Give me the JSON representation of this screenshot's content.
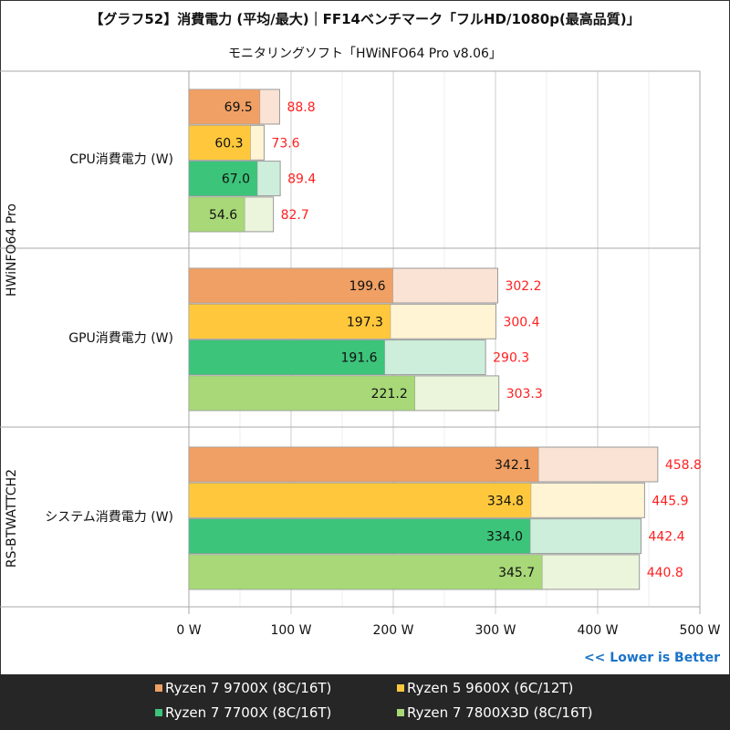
{
  "chart_data": {
    "type": "bar",
    "title": "【グラフ52】消費電力 (平均/最大)｜FF14ベンチマーク「フルHD/1080p(最高品質)」",
    "subtitle": "モニタリングソフト「HWiNFO64 Pro v8.06」",
    "categories": [
      "CPU消費電力 (W)",
      "GPU消費電力 (W)",
      "システム消費電力 (W)"
    ],
    "category_groups": [
      {
        "label": "HWiNFO64 Pro",
        "span": [
          0,
          1
        ]
      },
      {
        "label": "RS-BTWATTCH2",
        "span": [
          2,
          2
        ]
      }
    ],
    "series": [
      {
        "name": "Ryzen 7 9700X (8C/16T)",
        "color": "#f0a064",
        "light": "#fae3d4",
        "avg": [
          69.5,
          199.6,
          342.1
        ],
        "max": [
          88.8,
          302.2,
          458.8
        ]
      },
      {
        "name": "Ryzen 5 9600X (6C/12T)",
        "color": "#ffc83c",
        "light": "#fff4d4",
        "avg": [
          60.3,
          197.3,
          334.8
        ],
        "max": [
          73.6,
          300.4,
          445.9
        ]
      },
      {
        "name": "Ryzen 7 7700X (8C/16T)",
        "color": "#3cc47a",
        "light": "#cdeedb",
        "avg": [
          67.0,
          191.6,
          334.0
        ],
        "max": [
          89.4,
          290.3,
          442.4
        ]
      },
      {
        "name": "Ryzen 7 7800X3D (8C/16T)",
        "color": "#a8d878",
        "light": "#eaf5dc",
        "avg": [
          54.6,
          221.2,
          345.7
        ],
        "max": [
          82.7,
          303.3,
          440.8
        ]
      }
    ],
    "xlim": [
      0,
      500
    ],
    "xticks": [
      "0 W",
      "100 W",
      "200 W",
      "300 W",
      "400 W",
      "500 W"
    ],
    "xtick_values": [
      0,
      100,
      200,
      300,
      400,
      500
    ],
    "grid": true,
    "annotation": "<< Lower is Better",
    "annotation_color": "#1a73c8",
    "max_label_color": "#ff2020",
    "legend_placement": "bottom"
  }
}
